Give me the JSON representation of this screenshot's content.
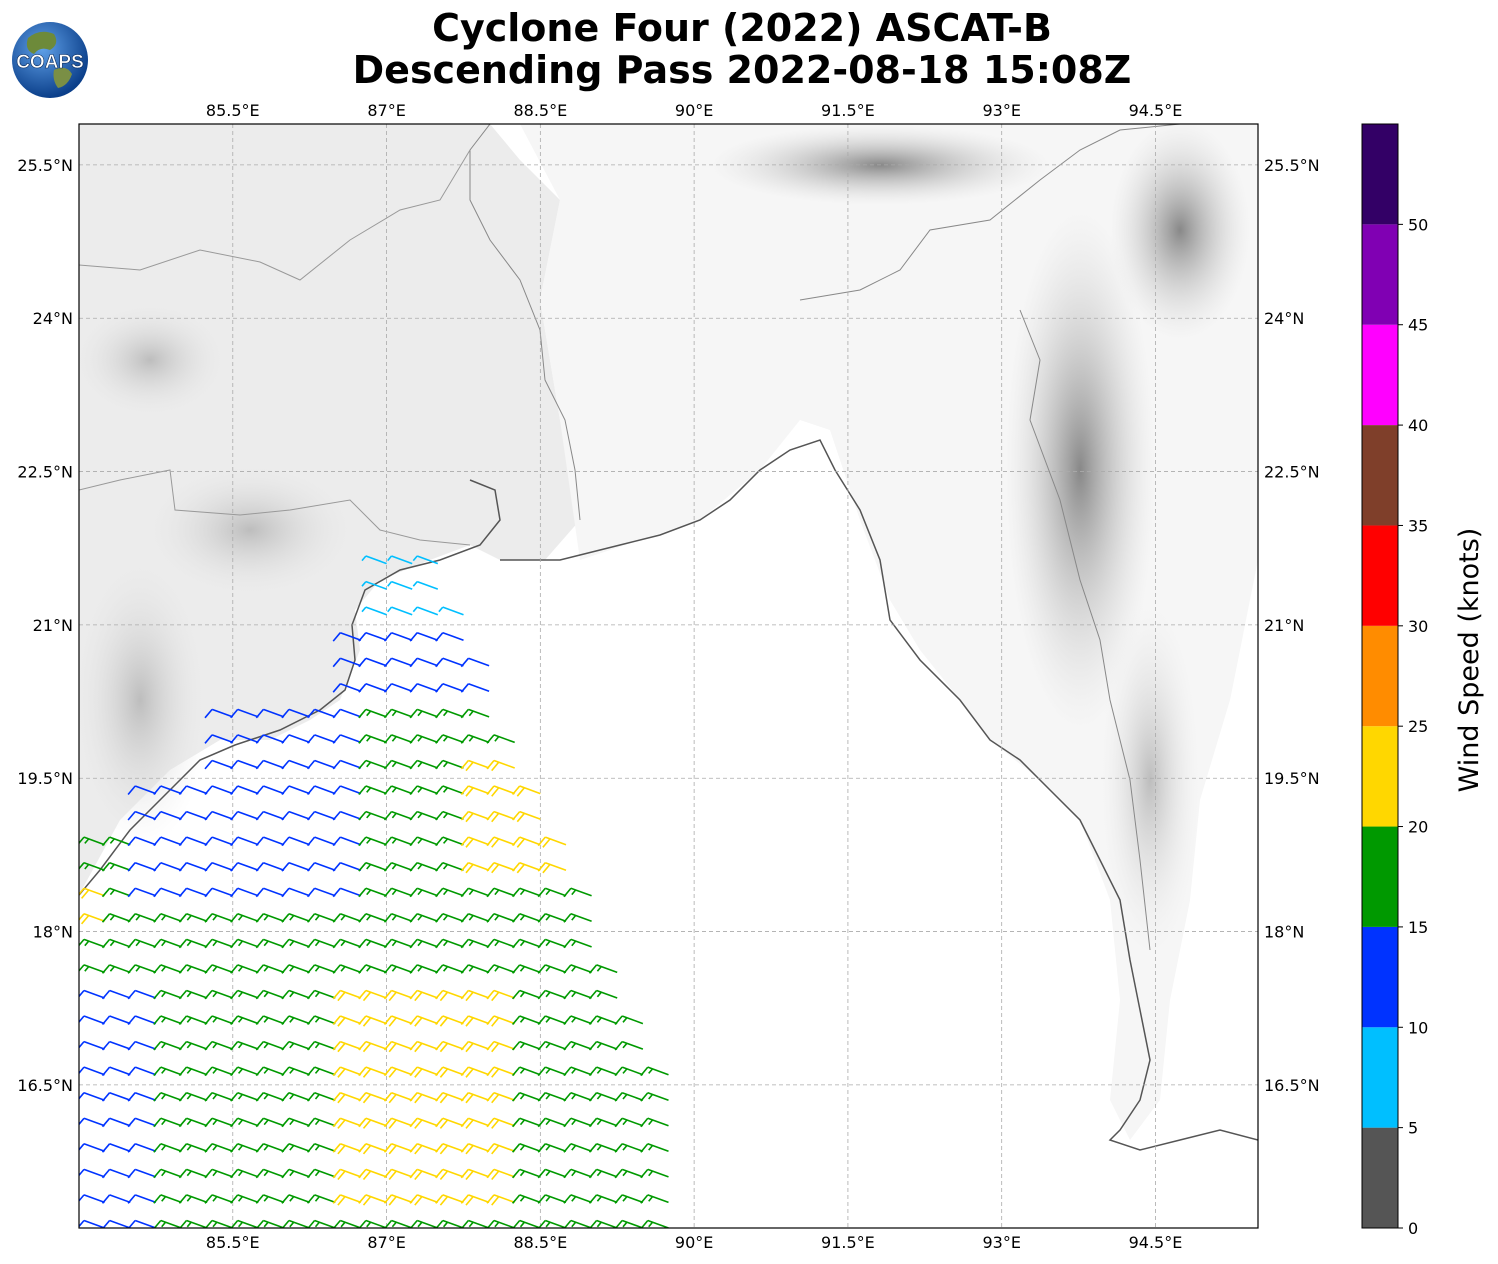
{
  "title": {
    "line1": "Cyclone Four (2022) ASCAT-B",
    "line2": "Descending Pass 2022-08-18 15:08Z"
  },
  "logo": {
    "text": "COAPS"
  },
  "map": {
    "lon_range": [
      84.0,
      95.5
    ],
    "lat_range": [
      15.1,
      25.9
    ],
    "lon_ticks": [
      "85.5°E",
      "87°E",
      "88.5°E",
      "90°E",
      "91.5°E",
      "93°E",
      "94.5°E"
    ],
    "lat_ticks": [
      "25.5°N",
      "24°N",
      "22.5°N",
      "21°N",
      "19.5°N",
      "18°N",
      "16.5°N"
    ],
    "gridlines": true,
    "background": "grayscale topography",
    "coastline_color": "#555555"
  },
  "colorbar": {
    "title": "Wind Speed (knots)",
    "tick_labels": [
      "0",
      "5",
      "10",
      "15",
      "20",
      "25",
      "30",
      "35",
      "40",
      "45",
      "50"
    ],
    "bins": [
      {
        "min": 0,
        "max": 5,
        "color": "#555555"
      },
      {
        "min": 5,
        "max": 10,
        "color": "#00bfff"
      },
      {
        "min": 10,
        "max": 15,
        "color": "#0033ff"
      },
      {
        "min": 15,
        "max": 20,
        "color": "#009900"
      },
      {
        "min": 20,
        "max": 25,
        "color": "#ffd700"
      },
      {
        "min": 25,
        "max": 30,
        "color": "#ff8c00"
      },
      {
        "min": 30,
        "max": 35,
        "color": "#ff0000"
      },
      {
        "min": 35,
        "max": 40,
        "color": "#7f3f2a"
      },
      {
        "min": 40,
        "max": 45,
        "color": "#ff00ff"
      },
      {
        "min": 45,
        "max": 50,
        "color": "#8000b3"
      },
      {
        "min": 50,
        "max": 55,
        "color": "#330066"
      }
    ]
  },
  "chart_data": {
    "type": "wind_barbs",
    "units": "knots",
    "swath_description": "ASCAT-B descending pass over the Bay of Bengal",
    "speed_regions": [
      {
        "area": "north coast near 21-21.7N, 86.8-88.5E",
        "speed_knots_range": [
          5,
          15
        ]
      },
      {
        "area": "central swath 18.5-20N",
        "speed_knots_range": [
          10,
          20
        ]
      },
      {
        "area": "east edge 18.5-19.6N, 88-89E",
        "speed_knots_range": [
          20,
          25
        ]
      },
      {
        "area": "core 15.5-17.5N, 86.5-88.5E",
        "speed_knots_range": [
          20,
          25
        ]
      },
      {
        "area": "southwest 16-17.5N, 84.2-85E",
        "speed_knots_range": [
          10,
          15
        ]
      }
    ]
  }
}
